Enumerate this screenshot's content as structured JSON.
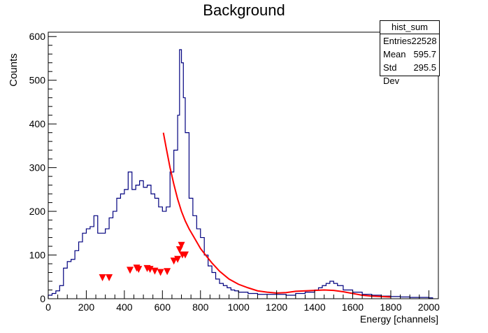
{
  "chart_data": {
    "type": "histogram",
    "title": "Background",
    "xlabel": "Energy [channels]",
    "ylabel": "Counts",
    "xlim": [
      0,
      2050
    ],
    "ylim": [
      0,
      610
    ],
    "xticks": [
      0,
      200,
      400,
      600,
      800,
      1000,
      1200,
      1400,
      1600,
      1800,
      2000
    ],
    "yticks": [
      0,
      100,
      200,
      300,
      400,
      500,
      600
    ],
    "grid": false,
    "colors": {
      "histogram": "#00007f",
      "fit": "#ff0000",
      "markers": "#ff0000"
    },
    "stats": {
      "name": "hist_sum",
      "rows": [
        {
          "label": "Entries",
          "value": "22528"
        },
        {
          "label": "Mean",
          "value": "595.7"
        },
        {
          "label": "Std Dev",
          "value": "295.5"
        }
      ]
    },
    "histogram": {
      "x": [
        0,
        20,
        40,
        60,
        80,
        100,
        120,
        140,
        160,
        180,
        200,
        220,
        240,
        260,
        280,
        300,
        320,
        340,
        360,
        380,
        400,
        420,
        440,
        460,
        480,
        500,
        520,
        540,
        560,
        580,
        600,
        620,
        640,
        660,
        680,
        690,
        700,
        710,
        720,
        740,
        760,
        780,
        800,
        820,
        840,
        860,
        880,
        900,
        920,
        940,
        960,
        980,
        1000,
        1050,
        1100,
        1150,
        1200,
        1250,
        1300,
        1350,
        1400,
        1420,
        1440,
        1460,
        1480,
        1500,
        1520,
        1550,
        1600,
        1650,
        1700,
        1750,
        1800,
        1850,
        1900,
        1950,
        2000
      ],
      "counts": [
        8,
        12,
        18,
        30,
        70,
        85,
        90,
        110,
        130,
        150,
        160,
        165,
        190,
        150,
        150,
        160,
        185,
        200,
        230,
        240,
        250,
        290,
        250,
        260,
        270,
        255,
        260,
        240,
        230,
        210,
        200,
        210,
        290,
        340,
        420,
        570,
        540,
        460,
        380,
        230,
        190,
        160,
        140,
        100,
        75,
        60,
        45,
        35,
        30,
        25,
        20,
        18,
        15,
        12,
        10,
        10,
        10,
        8,
        12,
        15,
        20,
        25,
        30,
        35,
        40,
        35,
        30,
        20,
        15,
        10,
        8,
        6,
        5,
        4,
        3,
        3,
        2
      ]
    },
    "fit_curve": {
      "x": [
        605,
        620,
        640,
        660,
        680,
        700,
        720,
        740,
        760,
        780,
        800,
        830,
        860,
        900,
        950,
        1000,
        1050,
        1100,
        1150,
        1200,
        1250,
        1300,
        1350,
        1400,
        1450,
        1500,
        1550,
        1600,
        1650,
        1700,
        1750,
        1800
      ],
      "y": [
        380,
        345,
        300,
        262,
        228,
        200,
        178,
        160,
        145,
        130,
        115,
        98,
        82,
        63,
        45,
        33,
        25,
        18,
        15,
        13,
        14,
        17,
        18,
        19,
        20,
        19,
        16,
        12,
        8,
        6,
        5,
        4
      ]
    },
    "markers": {
      "x": [
        285,
        320,
        430,
        465,
        475,
        520,
        535,
        560,
        590,
        625,
        660,
        680,
        690,
        700,
        705,
        720
      ],
      "y": [
        48,
        48,
        65,
        70,
        67,
        69,
        67,
        63,
        60,
        62,
        86,
        90,
        112,
        122,
        100,
        100
      ]
    }
  }
}
